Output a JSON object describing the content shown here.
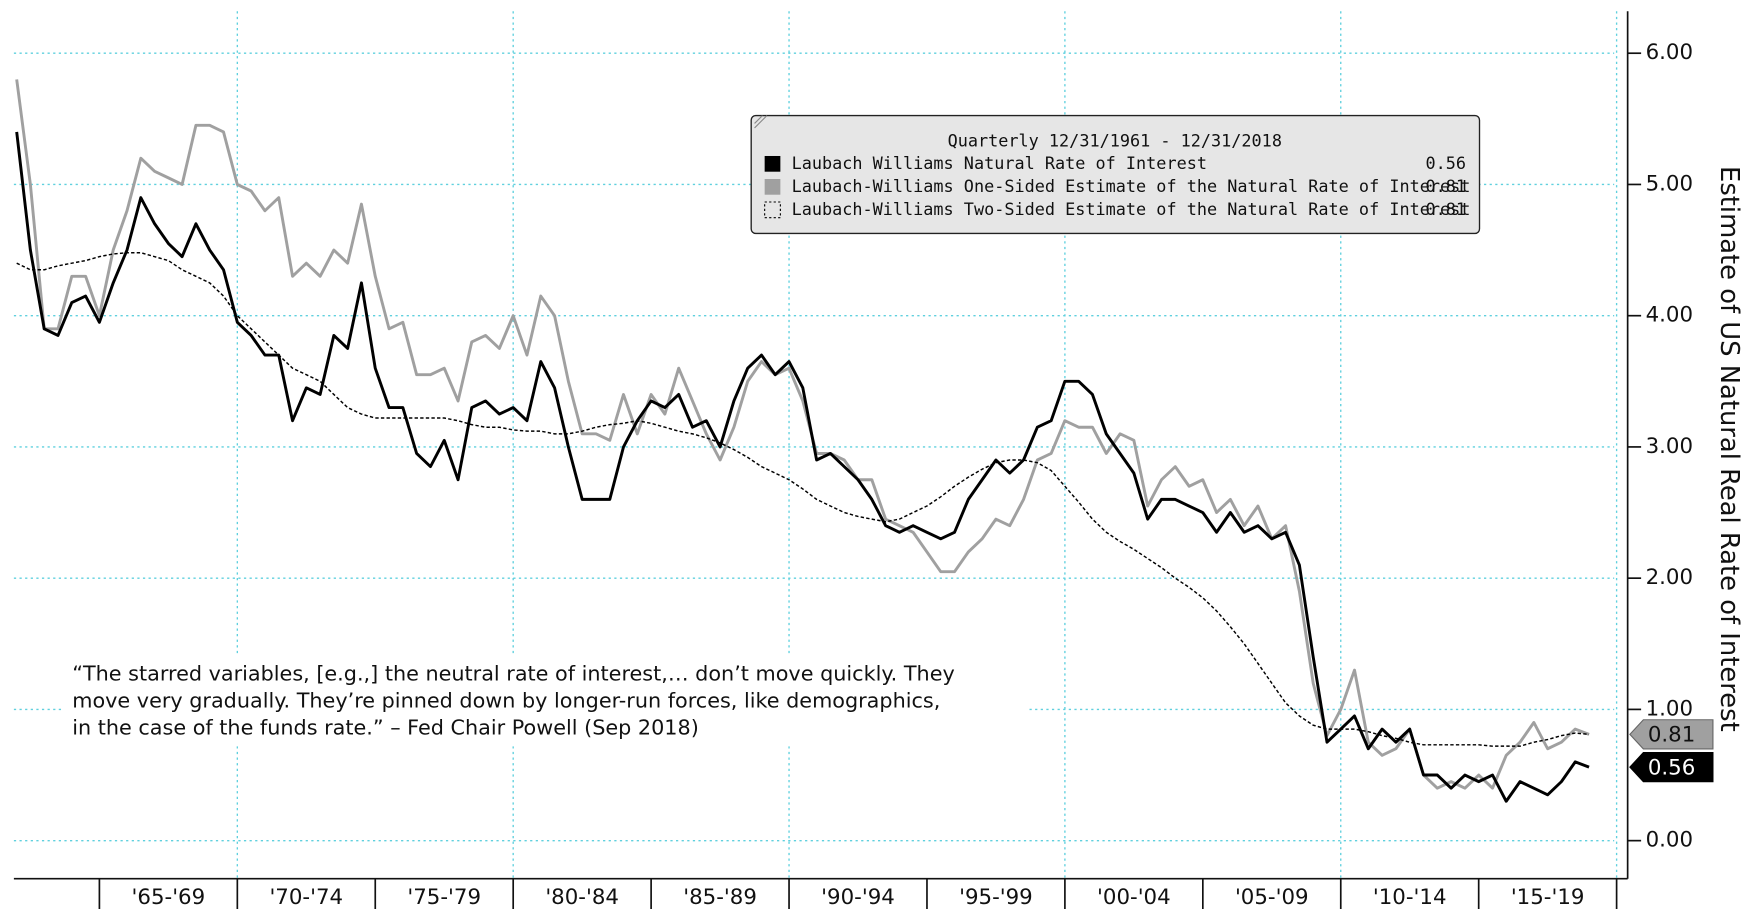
{
  "chart_data": {
    "type": "line",
    "ylabel": "Estimate of US Natural Real Rate of Interest",
    "legend_title": "Quarterly 12/31/1961 - 12/31/2018",
    "annotation": [
      "“The starred variables, [e.g.,] the neutral rate of interest,… don’t move quickly. They",
      "move very gradually. They’re pinned down by longer-run forces, like demographics,",
      "in the case of the funds rate.” – Fed Chair Powell (Sep 2018)"
    ],
    "xlim": [
      1961.9,
      2020.4
    ],
    "ylim": [
      -0.29,
      6.32
    ],
    "yticks": [
      {
        "value": 0,
        "label": "0.00"
      },
      {
        "value": 1,
        "label": "1.00"
      },
      {
        "value": 2,
        "label": "2.00"
      },
      {
        "value": 3,
        "label": "3.00"
      },
      {
        "value": 4,
        "label": "4.00"
      },
      {
        "value": 5,
        "label": "5.00"
      },
      {
        "value": 6,
        "label": "6.00"
      }
    ],
    "xticks": [
      1965,
      1970,
      1975,
      1980,
      1985,
      1990,
      1995,
      2000,
      2005,
      2010,
      2015,
      2020
    ],
    "x_labels": [
      {
        "value": 1967.5,
        "label": "'65-'69"
      },
      {
        "value": 1972.5,
        "label": "'70-'74"
      },
      {
        "value": 1977.5,
        "label": "'75-'79"
      },
      {
        "value": 1982.5,
        "label": "'80-'84"
      },
      {
        "value": 1987.5,
        "label": "'85-'89"
      },
      {
        "value": 1992.5,
        "label": "'90-'94"
      },
      {
        "value": 1997.5,
        "label": "'95-'99"
      },
      {
        "value": 2002.5,
        "label": "'00-'04"
      },
      {
        "value": 2007.5,
        "label": "'05-'09"
      },
      {
        "value": 2012.5,
        "label": "'10-'14"
      },
      {
        "value": 2017.5,
        "label": "'15-'19"
      }
    ],
    "grid": true,
    "x": [
      1962.0,
      1962.5,
      1963.0,
      1963.5,
      1964.0,
      1964.5,
      1965.0,
      1965.5,
      1966.0,
      1966.5,
      1967.0,
      1967.5,
      1968.0,
      1968.5,
      1969.0,
      1969.5,
      1970.0,
      1970.5,
      1971.0,
      1971.5,
      1972.0,
      1972.5,
      1973.0,
      1973.5,
      1974.0,
      1974.5,
      1975.0,
      1975.5,
      1976.0,
      1976.5,
      1977.0,
      1977.5,
      1978.0,
      1978.5,
      1979.0,
      1979.5,
      1980.0,
      1980.5,
      1981.0,
      1981.5,
      1982.0,
      1982.5,
      1983.0,
      1983.5,
      1984.0,
      1984.5,
      1985.0,
      1985.5,
      1986.0,
      1986.5,
      1987.0,
      1987.5,
      1988.0,
      1988.5,
      1989.0,
      1989.5,
      1990.0,
      1990.5,
      1991.0,
      1991.5,
      1992.0,
      1992.5,
      1993.0,
      1993.5,
      1994.0,
      1994.5,
      1995.0,
      1995.5,
      1996.0,
      1996.5,
      1997.0,
      1997.5,
      1998.0,
      1998.5,
      1999.0,
      1999.5,
      2000.0,
      2000.5,
      2001.0,
      2001.5,
      2002.0,
      2002.5,
      2003.0,
      2003.5,
      2004.0,
      2004.5,
      2005.0,
      2005.5,
      2006.0,
      2006.5,
      2007.0,
      2007.5,
      2008.0,
      2008.5,
      2009.0,
      2009.5,
      2010.0,
      2010.5,
      2011.0,
      2011.5,
      2012.0,
      2012.5,
      2013.0,
      2013.5,
      2014.0,
      2014.5,
      2015.0,
      2015.5,
      2016.0,
      2016.5,
      2017.0,
      2017.5,
      2018.0,
      2018.5,
      2019.0
    ],
    "series": [
      {
        "name": "Laubach Williams Natural Rate of Interest",
        "color": "#000000",
        "style": "solid",
        "legend_value": "0.56",
        "values": [
          5.4,
          4.5,
          3.9,
          3.85,
          4.1,
          4.15,
          3.95,
          4.25,
          4.5,
          4.9,
          4.7,
          4.55,
          4.45,
          4.7,
          4.5,
          4.35,
          3.95,
          3.85,
          3.7,
          3.7,
          3.2,
          3.45,
          3.4,
          3.85,
          3.75,
          4.25,
          3.6,
          3.3,
          3.3,
          2.95,
          2.85,
          3.05,
          2.75,
          3.3,
          3.35,
          3.25,
          3.3,
          3.2,
          3.65,
          3.45,
          3.0,
          2.6,
          2.6,
          2.6,
          3.0,
          3.2,
          3.35,
          3.3,
          3.4,
          3.15,
          3.2,
          3.0,
          3.35,
          3.6,
          3.7,
          3.55,
          3.65,
          3.45,
          2.9,
          2.95,
          2.85,
          2.75,
          2.6,
          2.4,
          2.35,
          2.4,
          2.35,
          2.3,
          2.35,
          2.6,
          2.75,
          2.9,
          2.8,
          2.9,
          3.15,
          3.2,
          3.5,
          3.5,
          3.4,
          3.1,
          2.95,
          2.8,
          2.45,
          2.6,
          2.6,
          2.55,
          2.5,
          2.35,
          2.5,
          2.35,
          2.4,
          2.3,
          2.35,
          2.1,
          1.4,
          0.75,
          0.85,
          0.95,
          0.7,
          0.85,
          0.75,
          0.85,
          0.5,
          0.5,
          0.4,
          0.5,
          0.45,
          0.5,
          0.3,
          0.45,
          0.4,
          0.35,
          0.45,
          0.6,
          0.56
        ]
      },
      {
        "name": "Laubach-Williams One-Sided Estimate of the Natural Rate of Interest",
        "color": "#a0a0a0",
        "style": "solid",
        "legend_value": "0.81",
        "values": [
          5.8,
          5.0,
          3.9,
          3.9,
          4.3,
          4.3,
          4.0,
          4.5,
          4.8,
          5.2,
          5.1,
          5.05,
          5.0,
          5.45,
          5.45,
          5.4,
          5.0,
          4.95,
          4.8,
          4.9,
          4.3,
          4.4,
          4.3,
          4.5,
          4.4,
          4.85,
          4.3,
          3.9,
          3.95,
          3.55,
          3.55,
          3.6,
          3.35,
          3.8,
          3.85,
          3.75,
          4.0,
          3.7,
          4.15,
          4.0,
          3.5,
          3.1,
          3.1,
          3.05,
          3.4,
          3.1,
          3.4,
          3.25,
          3.6,
          3.35,
          3.1,
          2.9,
          3.15,
          3.5,
          3.65,
          3.55,
          3.6,
          3.35,
          2.95,
          2.95,
          2.9,
          2.75,
          2.75,
          2.45,
          2.4,
          2.35,
          2.2,
          2.05,
          2.05,
          2.2,
          2.3,
          2.45,
          2.4,
          2.6,
          2.9,
          2.95,
          3.2,
          3.15,
          3.15,
          2.95,
          3.1,
          3.05,
          2.55,
          2.75,
          2.85,
          2.7,
          2.75,
          2.5,
          2.6,
          2.4,
          2.55,
          2.3,
          2.4,
          1.9,
          1.2,
          0.8,
          1.0,
          1.3,
          0.75,
          0.65,
          0.7,
          0.85,
          0.5,
          0.4,
          0.45,
          0.4,
          0.5,
          0.4,
          0.65,
          0.75,
          0.9,
          0.7,
          0.75,
          0.85,
          0.81
        ]
      },
      {
        "name": "Laubach-Williams Two-Sided Estimate of the Natural Rate of Interest",
        "color": "#000000",
        "style": "dotted",
        "legend_value": "0.81",
        "values": [
          4.4,
          4.35,
          4.35,
          4.38,
          4.4,
          4.42,
          4.45,
          4.47,
          4.48,
          4.48,
          4.45,
          4.42,
          4.35,
          4.3,
          4.25,
          4.15,
          4.0,
          3.9,
          3.8,
          3.7,
          3.6,
          3.55,
          3.5,
          3.4,
          3.3,
          3.25,
          3.22,
          3.22,
          3.22,
          3.22,
          3.22,
          3.22,
          3.2,
          3.17,
          3.15,
          3.15,
          3.13,
          3.12,
          3.12,
          3.1,
          3.1,
          3.12,
          3.15,
          3.17,
          3.18,
          3.2,
          3.18,
          3.15,
          3.12,
          3.1,
          3.07,
          3.03,
          2.98,
          2.92,
          2.85,
          2.8,
          2.75,
          2.68,
          2.6,
          2.55,
          2.5,
          2.47,
          2.45,
          2.43,
          2.45,
          2.5,
          2.55,
          2.62,
          2.7,
          2.77,
          2.83,
          2.88,
          2.9,
          2.9,
          2.88,
          2.82,
          2.7,
          2.58,
          2.45,
          2.35,
          2.28,
          2.22,
          2.15,
          2.08,
          2.0,
          1.93,
          1.85,
          1.75,
          1.63,
          1.5,
          1.35,
          1.2,
          1.05,
          0.95,
          0.88,
          0.85,
          0.85,
          0.85,
          0.83,
          0.8,
          0.78,
          0.75,
          0.73,
          0.73,
          0.73,
          0.73,
          0.73,
          0.72,
          0.72,
          0.72,
          0.75,
          0.77,
          0.8,
          0.82,
          0.81
        ]
      }
    ]
  }
}
